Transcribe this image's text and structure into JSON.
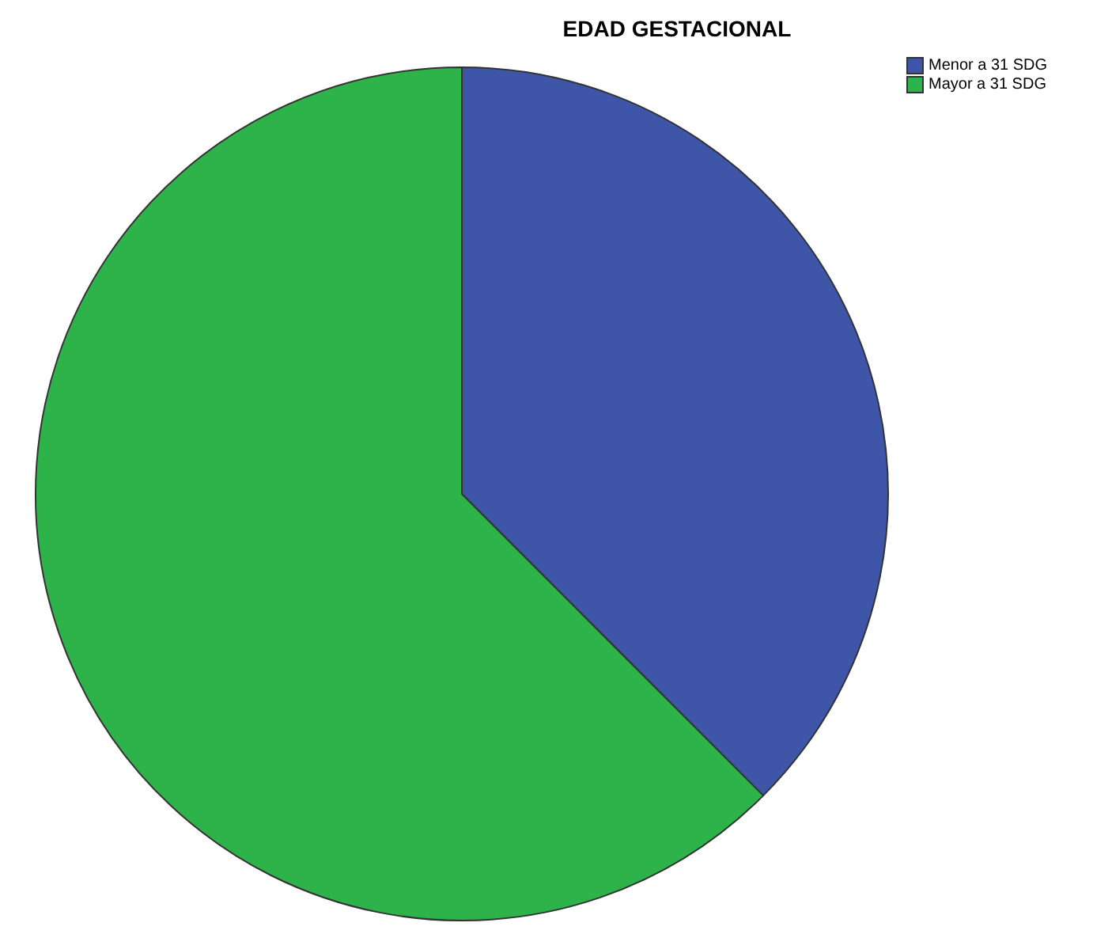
{
  "chart_data": {
    "type": "pie",
    "title": "EDAD GESTACIONAL",
    "categories": [
      "Menor a 31 SDG",
      "Mayor a 31 SDG"
    ],
    "values": [
      37.5,
      62.5
    ],
    "colors": [
      "#3f55a8",
      "#2db34a"
    ],
    "legend": "top right"
  }
}
